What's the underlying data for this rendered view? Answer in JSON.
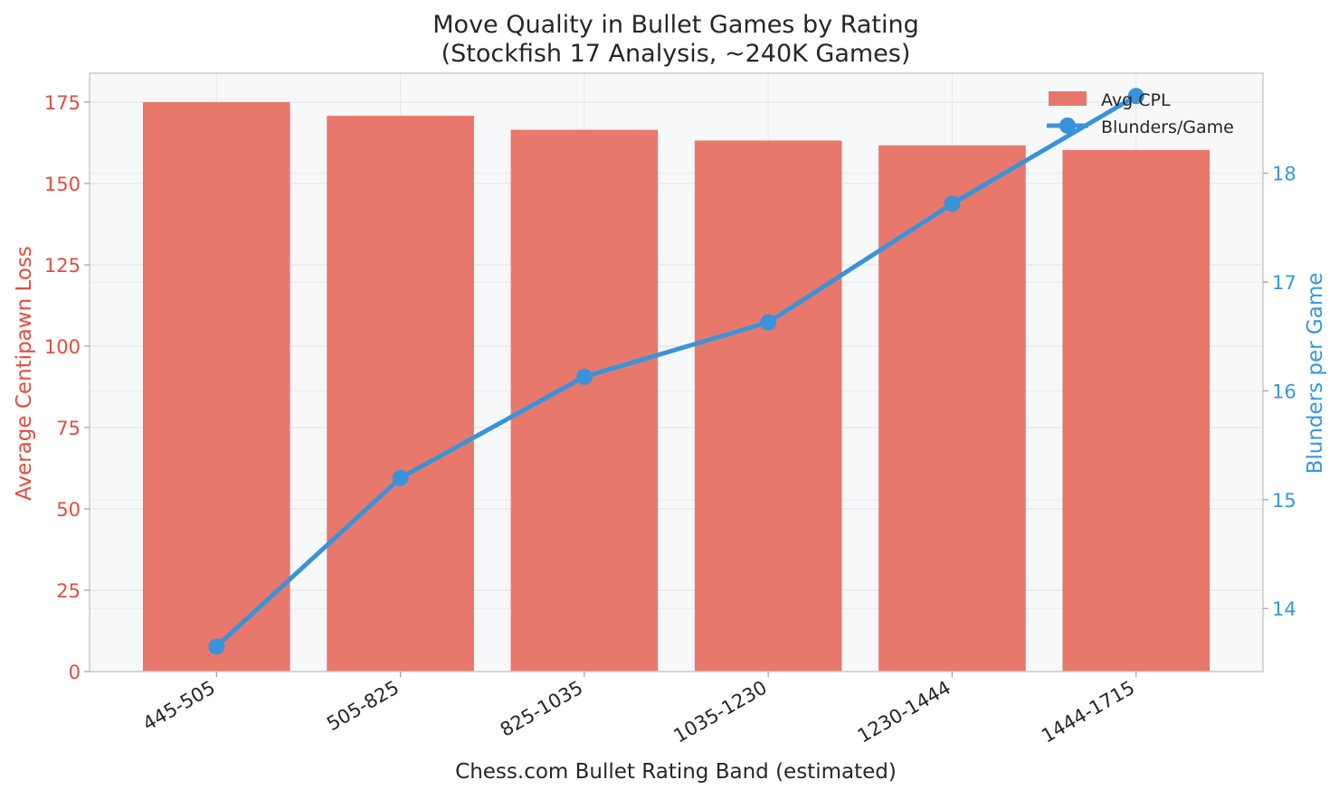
{
  "chart_data": {
    "type": "bar",
    "title_line1": "Move Quality in Bullet Games by Rating",
    "title_line2": "(Stockfish 17 Analysis, ~240K Games)",
    "xlabel": "Chess.com Bullet Rating Band (estimated)",
    "ylabel_left": "Average Centipawn Loss",
    "ylabel_right": "Blunders per Game",
    "categories": [
      "445-505",
      "505-825",
      "825-1035",
      "1035-1230",
      "1230-1444",
      "1444-1715"
    ],
    "series": [
      {
        "name": "Avg CPL",
        "kind": "bar",
        "axis": "left",
        "color": "#e8786b",
        "values": [
          175,
          170.8,
          166.5,
          163.2,
          161.7,
          160.3
        ]
      },
      {
        "name": "Blunders/Game",
        "kind": "line",
        "axis": "right",
        "color": "#3a93d8",
        "values": [
          13.65,
          15.2,
          16.13,
          16.63,
          17.72,
          18.71
        ]
      }
    ],
    "ylim_left": [
      0,
      175
    ],
    "yticks_left": [
      0,
      25,
      50,
      75,
      100,
      125,
      150,
      175
    ],
    "ylim_right": [
      13.42,
      18.92
    ],
    "yticks_right": [
      14,
      15,
      16,
      17,
      18
    ],
    "left_axis_color": "#e74c3c",
    "right_axis_color": "#3498db",
    "grid": true,
    "legend_position": "top-right"
  }
}
